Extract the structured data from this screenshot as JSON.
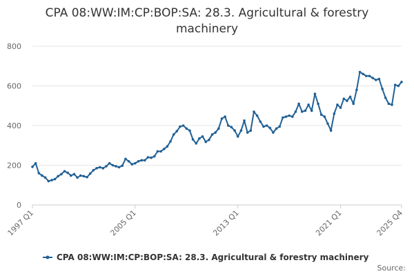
{
  "chart_data": {
    "type": "line",
    "title": "CPA 08:WW:IM:CP:BOP:SA: 28.3. Agricultural & forestry machinery",
    "xlabel": "",
    "ylabel": "",
    "ylim": [
      0,
      800
    ],
    "yticks": [
      0,
      200,
      400,
      600,
      800
    ],
    "xticks": [
      "1997 Q1",
      "2005 Q1",
      "2013 Q1",
      "2021 Q1",
      "2025 Q4"
    ],
    "grid": "horizontal",
    "legend_position": "bottom",
    "line_color": "#206095",
    "series": [
      {
        "name": "CPA 08:WW:IM:CP:BOP:SA: 28.3. Agricultural & forestry machinery",
        "x": [
          "1997 Q1",
          "1997 Q2",
          "1997 Q3",
          "1997 Q4",
          "1998 Q1",
          "1998 Q2",
          "1998 Q3",
          "1998 Q4",
          "1999 Q1",
          "1999 Q2",
          "1999 Q3",
          "1999 Q4",
          "2000 Q1",
          "2000 Q2",
          "2000 Q3",
          "2000 Q4",
          "2001 Q1",
          "2001 Q2",
          "2001 Q3",
          "2001 Q4",
          "2002 Q1",
          "2002 Q2",
          "2002 Q3",
          "2002 Q4",
          "2003 Q1",
          "2003 Q2",
          "2003 Q3",
          "2003 Q4",
          "2004 Q1",
          "2004 Q2",
          "2004 Q3",
          "2004 Q4",
          "2005 Q1",
          "2005 Q2",
          "2005 Q3",
          "2005 Q4",
          "2006 Q1",
          "2006 Q2",
          "2006 Q3",
          "2006 Q4",
          "2007 Q1",
          "2007 Q2",
          "2007 Q3",
          "2007 Q4",
          "2008 Q1",
          "2008 Q2",
          "2008 Q3",
          "2008 Q4",
          "2009 Q1",
          "2009 Q2",
          "2009 Q3",
          "2009 Q4",
          "2010 Q1",
          "2010 Q2",
          "2010 Q3",
          "2010 Q4",
          "2011 Q1",
          "2011 Q2",
          "2011 Q3",
          "2011 Q4",
          "2012 Q1",
          "2012 Q2",
          "2012 Q3",
          "2012 Q4",
          "2013 Q1",
          "2013 Q2",
          "2013 Q3",
          "2013 Q4",
          "2014 Q1",
          "2014 Q2",
          "2014 Q3",
          "2014 Q4",
          "2015 Q1",
          "2015 Q2",
          "2015 Q3",
          "2015 Q4",
          "2016 Q1",
          "2016 Q2",
          "2016 Q3",
          "2016 Q4",
          "2017 Q1",
          "2017 Q2",
          "2017 Q3",
          "2017 Q4",
          "2018 Q1",
          "2018 Q2",
          "2018 Q3",
          "2018 Q4",
          "2019 Q1",
          "2019 Q2",
          "2019 Q3",
          "2019 Q4",
          "2020 Q1",
          "2020 Q2",
          "2020 Q3",
          "2020 Q4",
          "2021 Q1",
          "2021 Q2",
          "2021 Q3",
          "2021 Q4",
          "2022 Q1",
          "2022 Q2",
          "2022 Q3",
          "2022 Q4",
          "2023 Q1",
          "2023 Q2",
          "2023 Q3",
          "2023 Q4",
          "2024 Q1",
          "2024 Q2",
          "2024 Q3",
          "2024 Q4",
          "2025 Q1",
          "2025 Q2",
          "2025 Q3",
          "2025 Q4"
        ],
        "values": [
          192,
          210,
          160,
          148,
          138,
          120,
          125,
          130,
          145,
          155,
          170,
          162,
          148,
          155,
          138,
          148,
          145,
          140,
          158,
          175,
          185,
          190,
          185,
          195,
          210,
          200,
          195,
          190,
          198,
          232,
          220,
          205,
          210,
          220,
          225,
          225,
          240,
          238,
          245,
          270,
          270,
          282,
          295,
          320,
          355,
          372,
          395,
          400,
          385,
          375,
          330,
          310,
          335,
          345,
          318,
          328,
          355,
          365,
          385,
          435,
          445,
          400,
          392,
          375,
          345,
          375,
          425,
          365,
          375,
          470,
          450,
          420,
          395,
          400,
          388,
          365,
          385,
          395,
          440,
          445,
          450,
          445,
          470,
          510,
          470,
          475,
          505,
          475,
          560,
          510,
          455,
          445,
          410,
          375,
          460,
          505,
          490,
          535,
          525,
          545,
          510,
          580,
          670,
          660,
          650,
          650,
          640,
          630,
          635,
          585,
          540,
          510,
          505,
          605,
          600,
          620
        ]
      }
    ]
  },
  "legend": {
    "label": "CPA 08:WW:IM:CP:BOP:SA: 28.3. Agricultural & forestry machinery"
  },
  "source_label": "Source:"
}
